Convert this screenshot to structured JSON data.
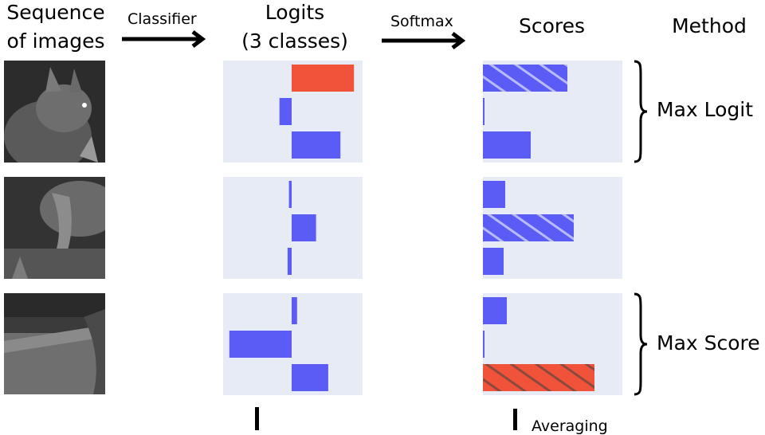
{
  "headers": {
    "images_line1": "Sequence",
    "images_line2": "of images",
    "logits_line1": "Logits",
    "logits_line2": "(3 classes)",
    "scores": "Scores",
    "method": "Method"
  },
  "arrows": {
    "classifier": "Classifier",
    "softmax": "Softmax",
    "averaging": "Averaging"
  },
  "methods": {
    "max_logit": "Max Logit",
    "max_score": "Max Score"
  },
  "colors": {
    "bar": "#5b5bf5",
    "highlight": "#f0523a",
    "panel": "#e6ebf6"
  },
  "frames": [
    {
      "logits": [
        {
          "value": 0.46,
          "style": "highlight"
        },
        {
          "value": -0.09,
          "style": "normal"
        },
        {
          "value": 0.36,
          "style": "normal"
        }
      ],
      "scores": [
        {
          "value": 0.53,
          "style": "hatched-blue"
        },
        {
          "value": 0.01,
          "style": "normal"
        },
        {
          "value": 0.3,
          "style": "normal"
        }
      ]
    },
    {
      "logits": [
        {
          "value": -0.02,
          "style": "normal"
        },
        {
          "value": 0.18,
          "style": "normal"
        },
        {
          "value": -0.03,
          "style": "normal"
        }
      ],
      "scores": [
        {
          "value": 0.14,
          "style": "normal"
        },
        {
          "value": 0.57,
          "style": "hatched-blue"
        },
        {
          "value": 0.13,
          "style": "normal"
        }
      ]
    },
    {
      "logits": [
        {
          "value": 0.04,
          "style": "normal"
        },
        {
          "value": -0.46,
          "style": "normal"
        },
        {
          "value": 0.27,
          "style": "normal"
        }
      ],
      "scores": [
        {
          "value": 0.15,
          "style": "normal"
        },
        {
          "value": 0.005,
          "style": "normal"
        },
        {
          "value": 0.7,
          "style": "hatched-red"
        }
      ]
    }
  ]
}
